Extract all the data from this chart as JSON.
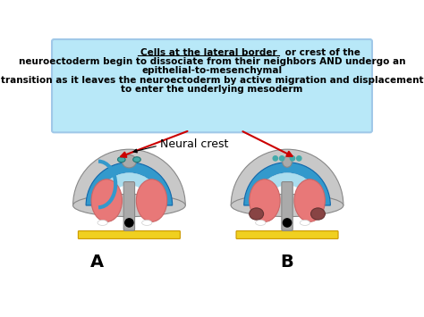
{
  "bg_color": "#ffffff",
  "text_box_color": "#b8e8f8",
  "text_box_edge_color": "#a0c8e8",
  "text_line1_bold_underline": "Cells at the lateral border",
  "text_line1_normal": " or crest of the",
  "text_line2": "neuroectoderm begin to dissociate from their neighbors AND undergo an",
  "text_line3_bold": "epithelial-to-mesenchymal",
  "text_line4_bold": "transition as it leaves the neuroectoderm by active migration and displacement",
  "text_line5_bold": "to enter the underlying mesoderm",
  "label_A": "A",
  "label_B": "B",
  "label_neural_crest": "Neural crest",
  "arrow_color": "#cc0000",
  "fig_width": 4.74,
  "fig_height": 3.55,
  "dpi": 100,
  "gray_outer": "#c8c8c8",
  "blue_layer": "#3399cc",
  "pink_tissue": "#e87878",
  "light_blue": "#aaddee",
  "yellow_layer": "#f0d020",
  "black": "#000000",
  "white": "#ffffff",
  "teal_small": "#44aaaa",
  "dark_brown": "#884444"
}
